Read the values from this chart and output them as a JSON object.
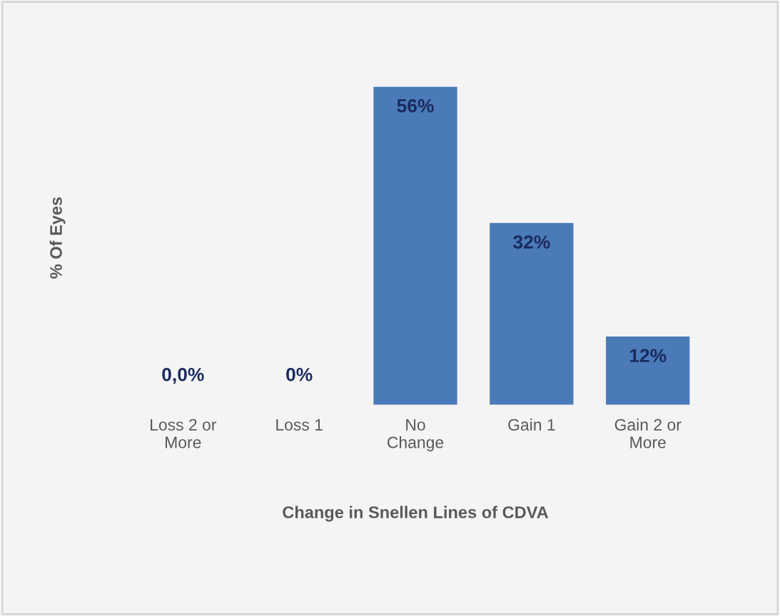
{
  "chart_data": {
    "type": "bar",
    "xlabel": "Change in Snellen Lines of CDVA",
    "ylabel": "% Of Eyes",
    "categories": [
      "Loss 2 or\nMore",
      "Loss 1",
      "No\nChange",
      "Gain 1",
      "Gain 2 or\nMore"
    ],
    "values": [
      0,
      0,
      56,
      32,
      12
    ],
    "value_labels": [
      "0,0%",
      "0%",
      "56%",
      "32%",
      "12%"
    ],
    "color": "#4a7ab8",
    "tick_labels": "x",
    "grid": false,
    "legend": false
  }
}
